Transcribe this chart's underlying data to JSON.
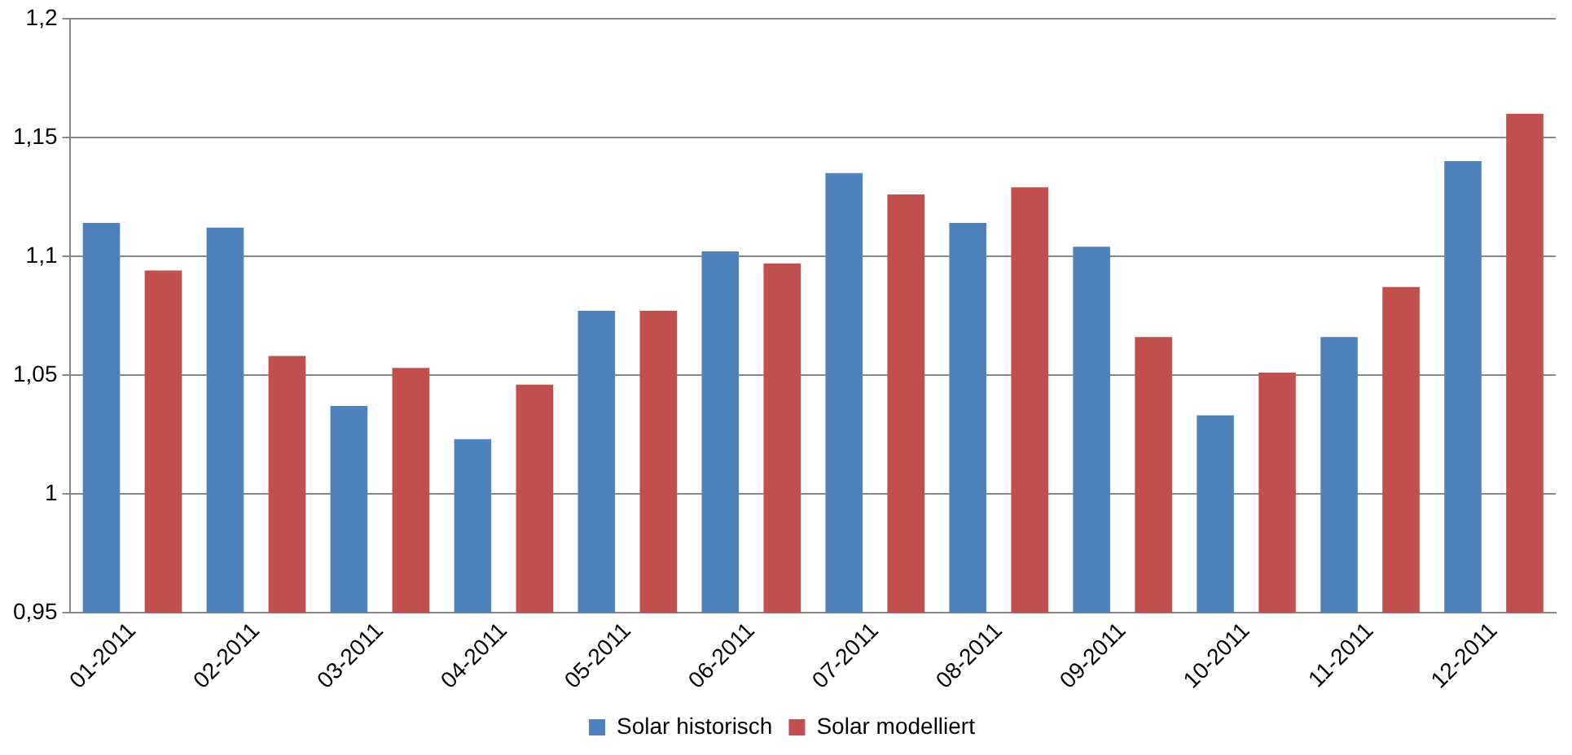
{
  "chart_data": {
    "type": "bar",
    "categories": [
      "01-2011",
      "02-2011",
      "03-2011",
      "04-2011",
      "05-2011",
      "06-2011",
      "07-2011",
      "08-2011",
      "09-2011",
      "10-2011",
      "11-2011",
      "12-2011"
    ],
    "series": [
      {
        "name": "Solar historisch",
        "color": "#4f81bd",
        "values": [
          1.114,
          1.112,
          1.037,
          1.023,
          1.077,
          1.102,
          1.135,
          1.114,
          1.104,
          1.033,
          1.066,
          1.14
        ]
      },
      {
        "name": "Solar modelliert",
        "color": "#c0504d",
        "values": [
          1.094,
          1.058,
          1.053,
          1.046,
          1.077,
          1.097,
          1.126,
          1.129,
          1.066,
          1.051,
          1.087,
          1.16
        ]
      }
    ],
    "ylim": [
      0.95,
      1.2
    ],
    "yticks": [
      {
        "value": 0.95,
        "label": "0,95"
      },
      {
        "value": 1,
        "label": "1"
      },
      {
        "value": 1.05,
        "label": "1,05"
      },
      {
        "value": 1.1,
        "label": "1,1"
      },
      {
        "value": 1.15,
        "label": "1,15"
      },
      {
        "value": 1.2,
        "label": "1,2"
      }
    ],
    "grid": "y",
    "legend": "bottom"
  }
}
